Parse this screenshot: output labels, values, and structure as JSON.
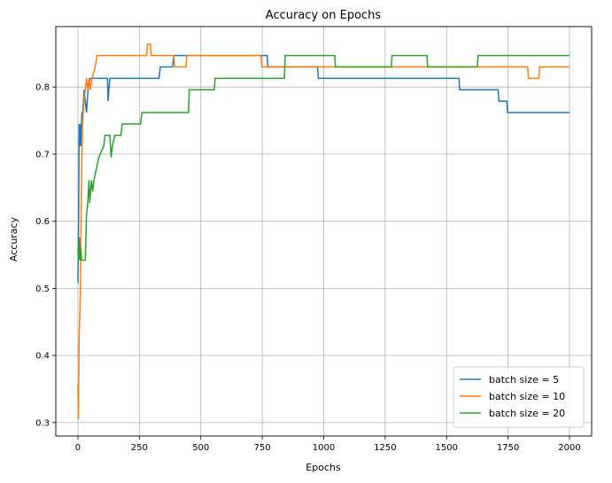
{
  "chart_data": {
    "type": "line",
    "title": "Accuracy on Epochs",
    "xlabel": "Epochs",
    "ylabel": "Accuracy",
    "xlim": [
      -90,
      2090
    ],
    "ylim": [
      0.28,
      0.89
    ],
    "xticks": [
      0,
      250,
      500,
      750,
      1000,
      1250,
      1500,
      1750,
      2000
    ],
    "yticks": [
      0.3,
      0.4,
      0.5,
      0.6,
      0.7,
      0.8
    ],
    "ytick_labels": [
      "0.3",
      "0.4",
      "0.5",
      "0.6",
      "0.7",
      "0.8"
    ],
    "grid": true,
    "legend_position": "lower right",
    "series": [
      {
        "name": "batch size = 5",
        "color": "#1f77b4",
        "points": [
          [
            0,
            0.508
          ],
          [
            3,
            0.61
          ],
          [
            5,
            0.745
          ],
          [
            8,
            0.712
          ],
          [
            10,
            0.745
          ],
          [
            13,
            0.712
          ],
          [
            16,
            0.762
          ],
          [
            20,
            0.762
          ],
          [
            25,
            0.796
          ],
          [
            35,
            0.762
          ],
          [
            42,
            0.8
          ],
          [
            50,
            0.813
          ],
          [
            120,
            0.813
          ],
          [
            123,
            0.779
          ],
          [
            126,
            0.796
          ],
          [
            130,
            0.813
          ],
          [
            145,
            0.813
          ],
          [
            330,
            0.813
          ],
          [
            335,
            0.83
          ],
          [
            385,
            0.83
          ],
          [
            390,
            0.847
          ],
          [
            770,
            0.847
          ],
          [
            773,
            0.83
          ],
          [
            975,
            0.83
          ],
          [
            978,
            0.813
          ],
          [
            1550,
            0.813
          ],
          [
            1553,
            0.796
          ],
          [
            1710,
            0.796
          ],
          [
            1713,
            0.779
          ],
          [
            1745,
            0.779
          ],
          [
            1748,
            0.762
          ],
          [
            2000,
            0.762
          ]
        ]
      },
      {
        "name": "batch size = 10",
        "color": "#ff7f0e",
        "points": [
          [
            0,
            0.356
          ],
          [
            2,
            0.305
          ],
          [
            5,
            0.43
          ],
          [
            8,
            0.46
          ],
          [
            10,
            0.5
          ],
          [
            13,
            0.6
          ],
          [
            16,
            0.7
          ],
          [
            19,
            0.745
          ],
          [
            22,
            0.762
          ],
          [
            25,
            0.779
          ],
          [
            30,
            0.796
          ],
          [
            35,
            0.813
          ],
          [
            40,
            0.796
          ],
          [
            45,
            0.813
          ],
          [
            50,
            0.796
          ],
          [
            58,
            0.813
          ],
          [
            70,
            0.83
          ],
          [
            78,
            0.847
          ],
          [
            280,
            0.847
          ],
          [
            283,
            0.864
          ],
          [
            295,
            0.864
          ],
          [
            298,
            0.847
          ],
          [
            390,
            0.847
          ],
          [
            393,
            0.83
          ],
          [
            440,
            0.83
          ],
          [
            443,
            0.847
          ],
          [
            745,
            0.847
          ],
          [
            748,
            0.83
          ],
          [
            1830,
            0.83
          ],
          [
            1833,
            0.813
          ],
          [
            1875,
            0.813
          ],
          [
            1878,
            0.83
          ],
          [
            2000,
            0.83
          ]
        ]
      },
      {
        "name": "batch size = 20",
        "color": "#2ca02c",
        "points": [
          [
            0,
            0.559
          ],
          [
            3,
            0.542
          ],
          [
            6,
            0.576
          ],
          [
            9,
            0.542
          ],
          [
            12,
            0.559
          ],
          [
            15,
            0.542
          ],
          [
            30,
            0.542
          ],
          [
            35,
            0.61
          ],
          [
            40,
            0.627
          ],
          [
            45,
            0.661
          ],
          [
            48,
            0.627
          ],
          [
            55,
            0.661
          ],
          [
            60,
            0.644
          ],
          [
            65,
            0.661
          ],
          [
            75,
            0.678
          ],
          [
            85,
            0.695
          ],
          [
            105,
            0.712
          ],
          [
            110,
            0.728
          ],
          [
            130,
            0.728
          ],
          [
            135,
            0.695
          ],
          [
            140,
            0.712
          ],
          [
            150,
            0.728
          ],
          [
            175,
            0.728
          ],
          [
            180,
            0.745
          ],
          [
            255,
            0.745
          ],
          [
            260,
            0.762
          ],
          [
            450,
            0.762
          ],
          [
            453,
            0.796
          ],
          [
            555,
            0.796
          ],
          [
            558,
            0.813
          ],
          [
            840,
            0.813
          ],
          [
            843,
            0.847
          ],
          [
            1045,
            0.847
          ],
          [
            1048,
            0.83
          ],
          [
            1275,
            0.83
          ],
          [
            1278,
            0.847
          ],
          [
            1420,
            0.847
          ],
          [
            1423,
            0.83
          ],
          [
            1625,
            0.83
          ],
          [
            1628,
            0.847
          ],
          [
            2000,
            0.847
          ]
        ]
      }
    ]
  }
}
